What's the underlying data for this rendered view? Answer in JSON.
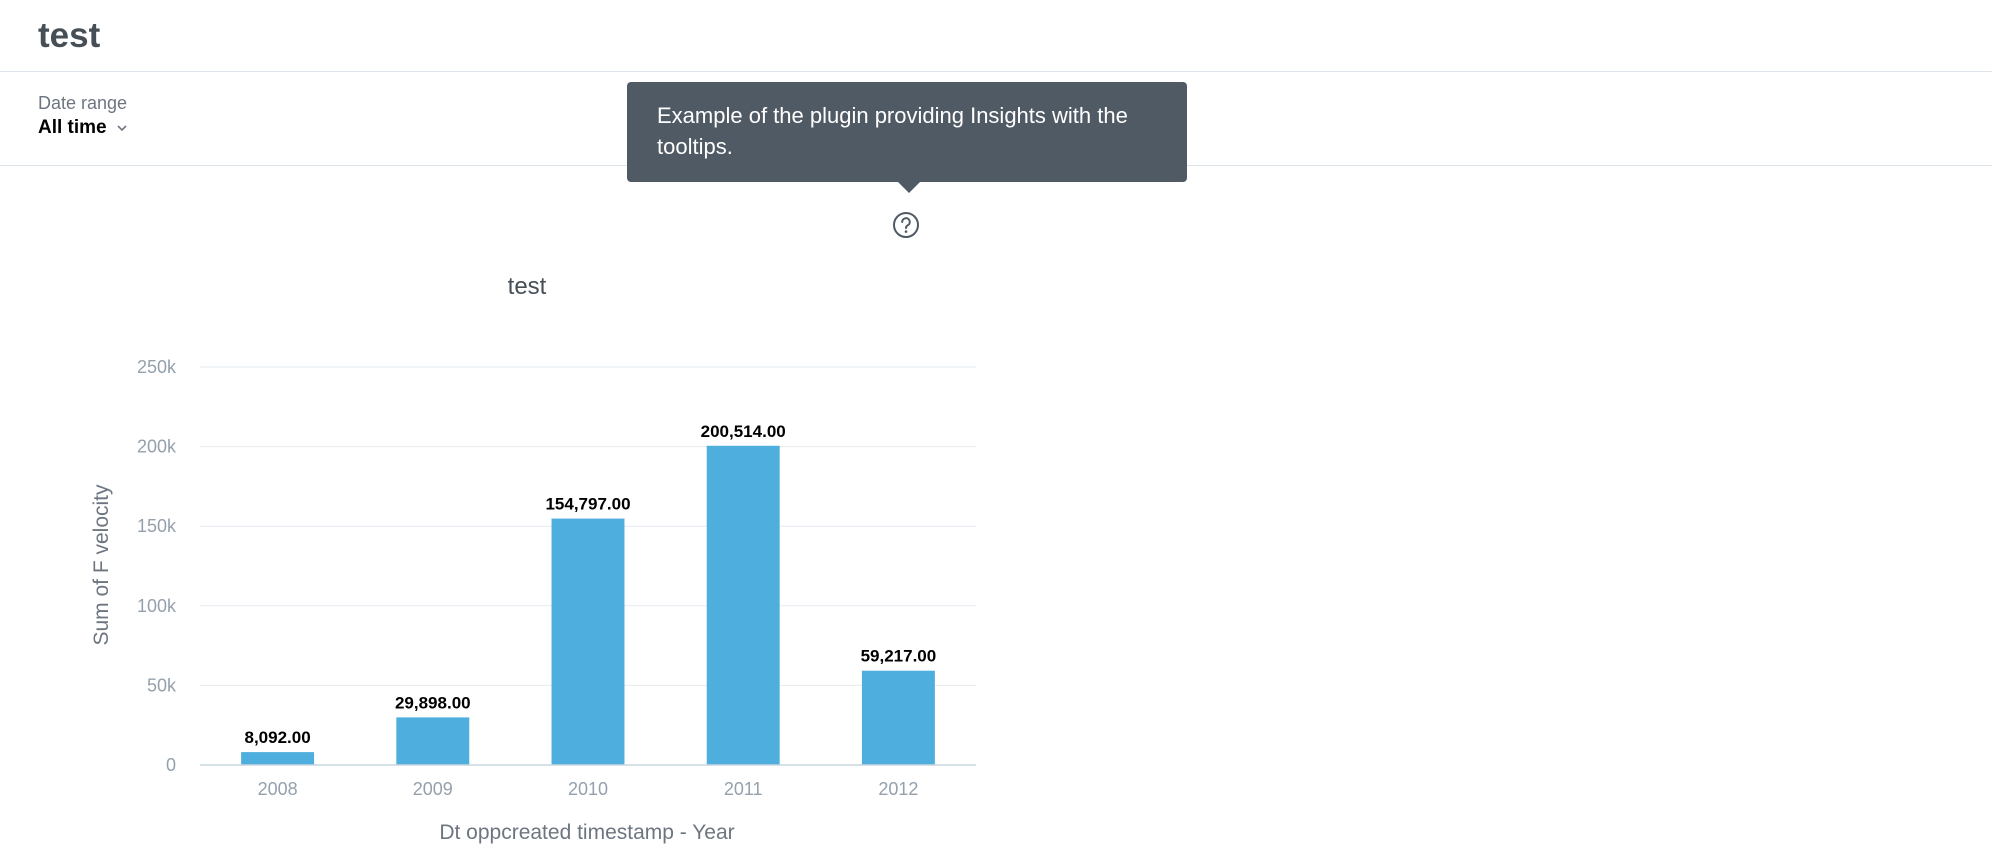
{
  "dashboard": {
    "title": "test"
  },
  "filters": {
    "date_range_label": "Date range",
    "date_range_value": "All time"
  },
  "tooltip": {
    "text": "Example of the plugin providing Insights with the tooltips."
  },
  "icons": {
    "help": "question-circle-icon",
    "chevron": "chevron-down-icon"
  },
  "chart_data": {
    "type": "bar",
    "title": "test",
    "xlabel": "Dt oppcreated timestamp - Year",
    "ylabel": "Sum of F velocity",
    "categories": [
      "2008",
      "2009",
      "2010",
      "2011",
      "2012"
    ],
    "values": [
      8092,
      29898,
      154797,
      200514,
      59217
    ],
    "data_labels": [
      "8,092.00",
      "29,898.00",
      "154,797.00",
      "200,514.00",
      "59,217.00"
    ],
    "ylim": [
      0,
      250000
    ],
    "yticks": [
      0,
      50000,
      100000,
      150000,
      200000,
      250000
    ],
    "ytick_labels": [
      "0",
      "50k",
      "100k",
      "150k",
      "200k",
      "250k"
    ],
    "grid": true,
    "bar_color": "#4eaedd"
  }
}
